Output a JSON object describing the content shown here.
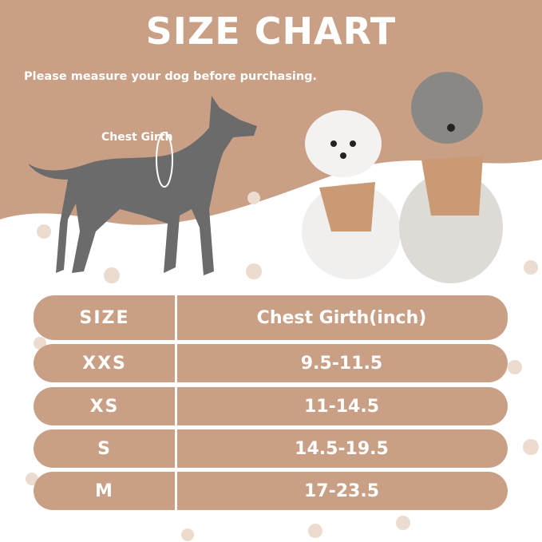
{
  "title": "SIZE CHART",
  "subtitle": "Please measure your dog before purchasing.",
  "diagram_label": "Chest Girth",
  "colors": {
    "tan": "#c9a085",
    "silhouette": "#6b6b6b",
    "paw": "#ecdcd0"
  },
  "table": {
    "headers": [
      "SIZE",
      "Chest Girth(inch)"
    ],
    "rows": [
      {
        "size": "XXS",
        "chest": "9.5-11.5"
      },
      {
        "size": "XS",
        "chest": "11-14.5"
      },
      {
        "size": "S",
        "chest": "14.5-19.5"
      },
      {
        "size": "M",
        "chest": "17-23.5"
      }
    ]
  }
}
